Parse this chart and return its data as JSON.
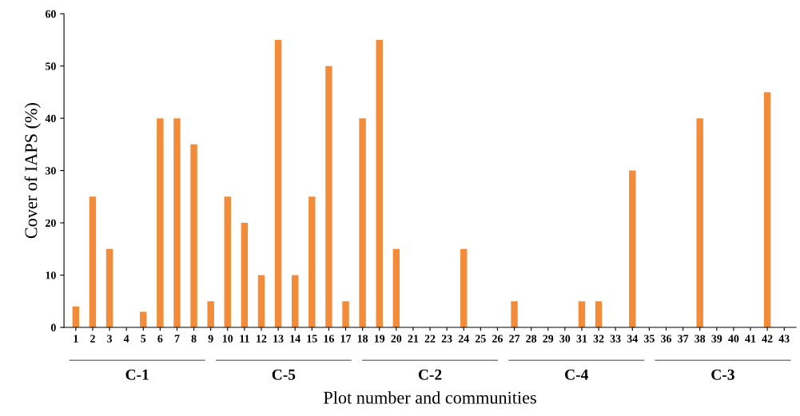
{
  "chart_data": {
    "type": "bar",
    "xlabel": "Plot number and communities",
    "ylabel": "Cover of IAPS (%)",
    "categories": [
      "1",
      "2",
      "3",
      "4",
      "5",
      "6",
      "7",
      "8",
      "9",
      "10",
      "11",
      "12",
      "13",
      "14",
      "15",
      "16",
      "17",
      "18",
      "19",
      "20",
      "21",
      "22",
      "23",
      "24",
      "25",
      "26",
      "27",
      "28",
      "29",
      "30",
      "31",
      "32",
      "33",
      "34",
      "35",
      "36",
      "37",
      "38",
      "39",
      "40",
      "41",
      "42",
      "43"
    ],
    "values": [
      4,
      25,
      15,
      0,
      3,
      40,
      40,
      35,
      5,
      25,
      20,
      10,
      55,
      10,
      25,
      50,
      5,
      40,
      55,
      15,
      0,
      0,
      0,
      15,
      0,
      0,
      5,
      0,
      0,
      0,
      5,
      5,
      0,
      30,
      0,
      0,
      0,
      40,
      0,
      0,
      0,
      45,
      0
    ],
    "color": "#f28c3a",
    "ylim": [
      0,
      60
    ],
    "yticks": [
      0,
      10,
      20,
      30,
      40,
      50,
      60
    ],
    "grid": false,
    "legend": false,
    "annotations": [
      "C-1",
      "C-5",
      "C-2",
      "C-4",
      "C-3"
    ]
  }
}
